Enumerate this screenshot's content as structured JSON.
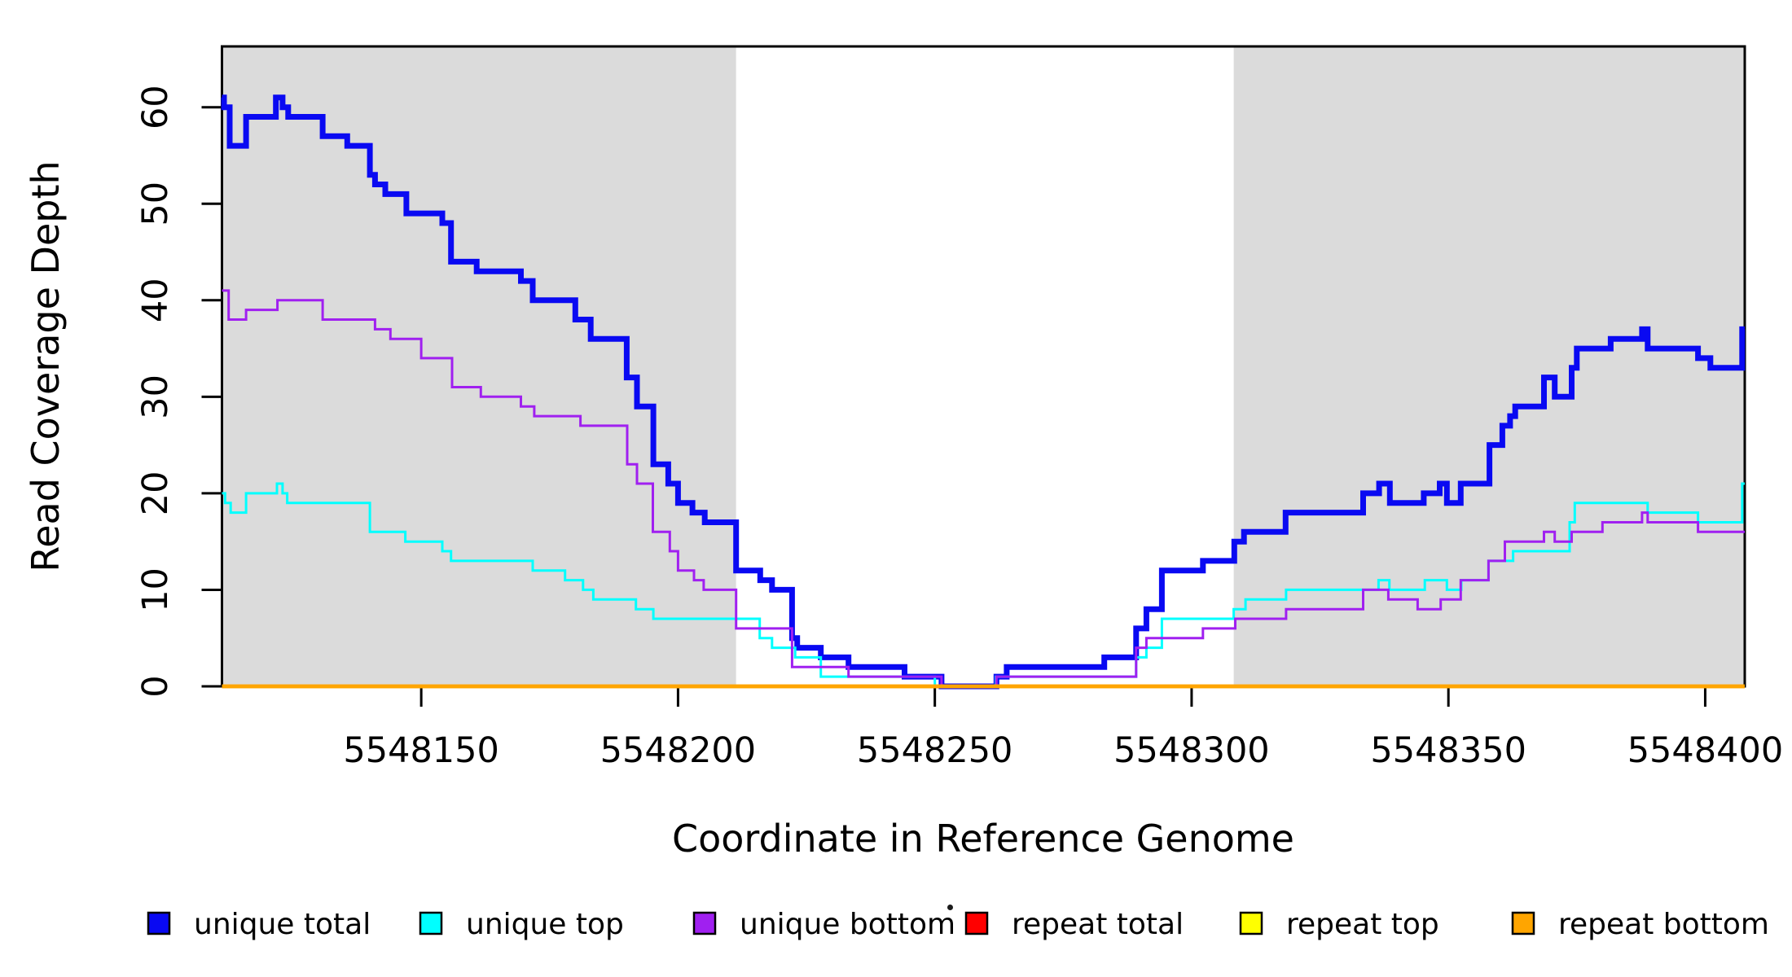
{
  "chart_data": {
    "type": "line",
    "subtype": "step-coverage-plot",
    "title": "",
    "xlabel": "Coordinate in Reference Genome",
    "ylabel": "Read Coverage Depth",
    "xlim": [
      5548111.2,
      5548407.7
    ],
    "ylim": [
      0,
      66.3
    ],
    "grid": false,
    "background_color": "#FFFFFF",
    "shaded_band_color": "#DBDBDB",
    "frame_color": "#000000",
    "x_ticks": [
      {
        "value": 5548150,
        "label": "5548150"
      },
      {
        "value": 5548200,
        "label": "5548200"
      },
      {
        "value": 5548250,
        "label": "5548250"
      },
      {
        "value": 5548300,
        "label": "5548300"
      },
      {
        "value": 5548350,
        "label": "5548350"
      },
      {
        "value": 5548400,
        "label": "5548400"
      }
    ],
    "y_ticks": [
      {
        "value": 0,
        "label": "0"
      },
      {
        "value": 10,
        "label": "10"
      },
      {
        "value": 20,
        "label": "20"
      },
      {
        "value": 30,
        "label": "30"
      },
      {
        "value": 40,
        "label": "40"
      },
      {
        "value": 50,
        "label": "50"
      },
      {
        "value": 60,
        "label": "60"
      }
    ],
    "shaded_regions": [
      {
        "x0": 5548111.2,
        "x1": 5548211.3
      },
      {
        "x0": 5548308.2,
        "x1": 5548407.7
      }
    ],
    "series": [
      {
        "name": "unique total",
        "color": "#0909F2",
        "line_width": 7,
        "x_end": 5548407.7,
        "steps": [
          [
            5548111.2,
            61
          ],
          [
            5548111.6,
            60
          ],
          [
            5548112.7,
            56
          ],
          [
            5548115.9,
            59
          ],
          [
            5548121.7,
            61
          ],
          [
            5548123.0,
            60
          ],
          [
            5548124.1,
            59
          ],
          [
            5548130.8,
            57
          ],
          [
            5548135.6,
            56
          ],
          [
            5548140.0,
            53
          ],
          [
            5548141.0,
            52
          ],
          [
            5548143.0,
            51
          ],
          [
            5548147.1,
            49
          ],
          [
            5548154.1,
            48
          ],
          [
            5548155.8,
            44
          ],
          [
            5548160.8,
            43
          ],
          [
            5548169.4,
            42
          ],
          [
            5548171.7,
            40
          ],
          [
            5548180.0,
            38
          ],
          [
            5548183.0,
            36
          ],
          [
            5548190.0,
            32
          ],
          [
            5548192.0,
            29
          ],
          [
            5548195.2,
            23
          ],
          [
            5548198.1,
            21
          ],
          [
            5548200.0,
            19
          ],
          [
            5548202.8,
            18
          ],
          [
            5548205.2,
            17
          ],
          [
            5548211.3,
            12
          ],
          [
            5548216.0,
            11
          ],
          [
            5548218.3,
            10
          ],
          [
            5548222.2,
            5
          ],
          [
            5548223.2,
            4
          ],
          [
            5548227.8,
            3
          ],
          [
            5548233.2,
            2
          ],
          [
            5548244.1,
            1
          ],
          [
            5548251.3,
            0
          ],
          [
            5548262.0,
            1
          ],
          [
            5548264.0,
            2
          ],
          [
            5548283.0,
            3
          ],
          [
            5548289.2,
            6
          ],
          [
            5548291.2,
            8
          ],
          [
            5548294.2,
            12
          ],
          [
            5548302.2,
            13
          ],
          [
            5548308.3,
            15
          ],
          [
            5548310.2,
            16
          ],
          [
            5548318.3,
            18
          ],
          [
            5548333.4,
            20
          ],
          [
            5548336.5,
            21
          ],
          [
            5548338.6,
            19
          ],
          [
            5548345.2,
            20
          ],
          [
            5548348.3,
            21
          ],
          [
            5548349.7,
            19
          ],
          [
            5548352.4,
            21
          ],
          [
            5548358.0,
            25
          ],
          [
            5548360.5,
            27
          ],
          [
            5548362.0,
            28
          ],
          [
            5548363.0,
            29
          ],
          [
            5548368.6,
            32
          ],
          [
            5548370.7,
            30
          ],
          [
            5548374.0,
            33
          ],
          [
            5548375.0,
            35
          ],
          [
            5548381.6,
            36
          ],
          [
            5548387.7,
            37
          ],
          [
            5548388.8,
            35
          ],
          [
            5548398.6,
            34
          ],
          [
            5548401.0,
            33
          ],
          [
            5548407.2,
            37
          ]
        ]
      },
      {
        "name": "unique top",
        "color": "#00FFFF",
        "line_width": 3,
        "x_end": 5548407.7,
        "steps": [
          [
            5548111.2,
            20
          ],
          [
            5548111.8,
            19
          ],
          [
            5548112.9,
            18
          ],
          [
            5548115.9,
            20
          ],
          [
            5548121.9,
            21
          ],
          [
            5548123.0,
            20
          ],
          [
            5548123.9,
            19
          ],
          [
            5548140.0,
            16
          ],
          [
            5548146.9,
            15
          ],
          [
            5548154.1,
            14
          ],
          [
            5548155.8,
            13
          ],
          [
            5548171.7,
            12
          ],
          [
            5548178.0,
            11
          ],
          [
            5548181.5,
            10
          ],
          [
            5548183.5,
            9
          ],
          [
            5548191.8,
            8
          ],
          [
            5548195.2,
            7
          ],
          [
            5548215.9,
            5
          ],
          [
            5548218.3,
            4
          ],
          [
            5548222.8,
            3
          ],
          [
            5548227.8,
            1
          ],
          [
            5548250.0,
            0
          ],
          [
            5548261.9,
            1
          ],
          [
            5548289.2,
            3
          ],
          [
            5548291.2,
            4
          ],
          [
            5548294.2,
            7
          ],
          [
            5548308.2,
            8
          ],
          [
            5548310.5,
            9
          ],
          [
            5548318.4,
            10
          ],
          [
            5548336.4,
            11
          ],
          [
            5548338.5,
            10
          ],
          [
            5548345.4,
            11
          ],
          [
            5548349.7,
            10
          ],
          [
            5548352.5,
            11
          ],
          [
            5548357.8,
            13
          ],
          [
            5548362.6,
            14
          ],
          [
            5548373.6,
            17
          ],
          [
            5548374.6,
            19
          ],
          [
            5548388.8,
            18
          ],
          [
            5548398.6,
            17
          ],
          [
            5548407.2,
            21
          ]
        ]
      },
      {
        "name": "unique bottom",
        "color": "#A020F0",
        "line_width": 3,
        "x_end": 5548407.7,
        "steps": [
          [
            5548111.2,
            41
          ],
          [
            5548112.5,
            38
          ],
          [
            5548115.9,
            39
          ],
          [
            5548122.0,
            40
          ],
          [
            5548130.8,
            38
          ],
          [
            5548141.0,
            37
          ],
          [
            5548144.0,
            36
          ],
          [
            5548150.0,
            34
          ],
          [
            5548156.0,
            31
          ],
          [
            5548161.6,
            30
          ],
          [
            5548169.4,
            29
          ],
          [
            5548172.0,
            28
          ],
          [
            5548181.0,
            27
          ],
          [
            5548190.1,
            23
          ],
          [
            5548192.0,
            21
          ],
          [
            5548195.1,
            16
          ],
          [
            5548198.4,
            14
          ],
          [
            5548200.0,
            12
          ],
          [
            5548203.1,
            11
          ],
          [
            5548205.0,
            10
          ],
          [
            5548211.3,
            6
          ],
          [
            5548222.2,
            2
          ],
          [
            5548233.2,
            1
          ],
          [
            5548251.3,
            0
          ],
          [
            5548262.0,
            1
          ],
          [
            5548289.2,
            4
          ],
          [
            5548291.2,
            5
          ],
          [
            5548302.2,
            6
          ],
          [
            5548308.5,
            7
          ],
          [
            5548318.4,
            8
          ],
          [
            5548333.4,
            10
          ],
          [
            5548338.3,
            9
          ],
          [
            5548344.0,
            8
          ],
          [
            5548348.5,
            9
          ],
          [
            5548352.4,
            11
          ],
          [
            5548357.8,
            13
          ],
          [
            5548361.0,
            15
          ],
          [
            5548368.6,
            16
          ],
          [
            5548370.7,
            15
          ],
          [
            5548374.0,
            16
          ],
          [
            5548380.0,
            17
          ],
          [
            5548387.7,
            18
          ],
          [
            5548388.8,
            17
          ],
          [
            5548398.6,
            16
          ]
        ]
      },
      {
        "name": "repeat total",
        "color": "#FF0000",
        "line_width": 4.5,
        "x_end": 5548407.7,
        "steps": [
          [
            5548111.2,
            0
          ]
        ]
      },
      {
        "name": "repeat top",
        "color": "#FFFF00",
        "line_width": 4.5,
        "x_end": 5548407.7,
        "steps": [
          [
            5548111.2,
            0
          ]
        ]
      },
      {
        "name": "repeat bottom",
        "color": "#FFA500",
        "line_width": 4.5,
        "x_end": 5548407.7,
        "steps": [
          [
            5548111.2,
            0
          ]
        ]
      }
    ],
    "legend": {
      "position": "bottom",
      "entries": [
        {
          "label": "unique total",
          "color": "#0909F2"
        },
        {
          "label": "unique top",
          "color": "#00FFFF"
        },
        {
          "label": "unique bottom",
          "color": "#A020F0"
        },
        {
          "label": "repeat total",
          "color": "#FF0000"
        },
        {
          "label": "repeat top",
          "color": "#FFFF00"
        },
        {
          "label": "repeat bottom",
          "color": "#FFA500"
        }
      ]
    }
  }
}
